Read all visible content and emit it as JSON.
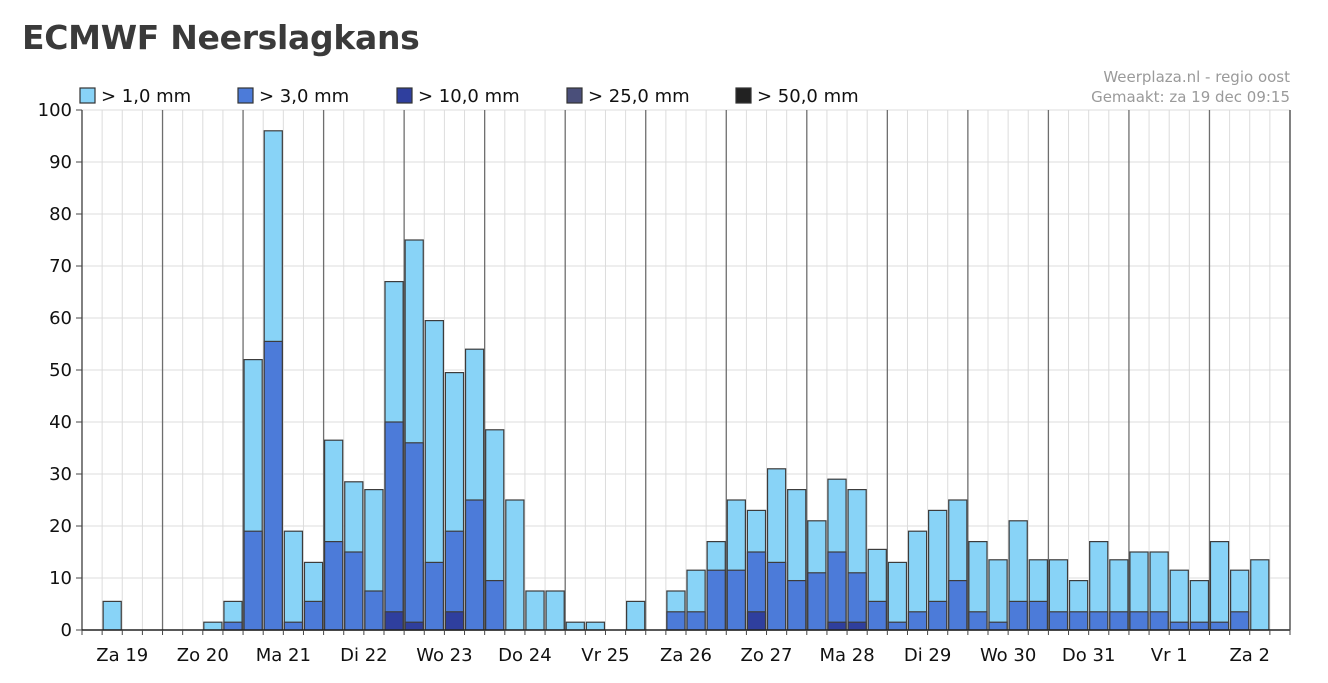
{
  "title": "ECMWF Neerslagkans",
  "credit": {
    "line1": "Weerplaza.nl - regio oost",
    "line2": "Gemaakt: za 19 dec 09:15"
  },
  "chart_data": {
    "type": "bar",
    "ylim": [
      0,
      100
    ],
    "yticks": [
      0,
      10,
      20,
      30,
      40,
      50,
      60,
      70,
      80,
      90,
      100
    ],
    "days": [
      "Za 19",
      "Zo 20",
      "Ma 21",
      "Di 22",
      "Wo 23",
      "Do 24",
      "Vr 25",
      "Za 26",
      "Zo 27",
      "Ma 28",
      "Di 29",
      "Wo 30",
      "Do 31",
      "Vr 1",
      "Za 2"
    ],
    "bars_per_day": 4,
    "grid": true,
    "legend_position": "top-left",
    "series": [
      {
        "name": "> 1,0 mm",
        "color": "#88d3f7",
        "values": [
          0,
          5.5,
          0,
          0,
          0,
          0,
          1.5,
          5.5,
          52,
          96,
          19,
          13,
          36.5,
          28.5,
          27,
          67,
          75,
          59.5,
          49.5,
          54,
          38.5,
          25,
          7.5,
          7.5,
          1.5,
          1.5,
          0,
          5.5,
          0,
          7.5,
          11.5,
          17,
          25,
          23,
          31,
          27,
          21,
          29,
          27,
          15.5,
          13,
          19,
          23,
          25,
          17,
          13.5,
          21,
          13.5,
          13.5,
          9.5,
          17,
          13.5,
          15,
          15,
          11.5,
          9.5,
          17,
          11.5,
          13.5
        ]
      },
      {
        "name": "> 3,0 mm",
        "color": "#4c7bd9",
        "values": [
          0,
          0,
          0,
          0,
          0,
          0,
          0,
          1.5,
          19,
          55.5,
          1.5,
          5.5,
          17,
          15,
          7.5,
          40,
          36,
          13,
          19,
          25,
          9.5,
          0,
          0,
          0,
          0,
          0,
          0,
          0,
          0,
          3.5,
          3.5,
          11.5,
          11.5,
          15,
          13,
          9.5,
          11,
          15,
          11,
          5.5,
          1.5,
          3.5,
          5.5,
          9.5,
          3.5,
          1.5,
          5.5,
          5.5,
          3.5,
          3.5,
          3.5,
          3.5,
          3.5,
          3.5,
          1.5,
          1.5,
          1.5,
          3.5,
          0
        ]
      },
      {
        "name": "> 10,0 mm",
        "color": "#2f3f9e",
        "values": [
          0,
          0,
          0,
          0,
          0,
          0,
          0,
          0,
          0,
          0,
          0,
          0,
          0,
          0,
          0,
          3.5,
          1.5,
          0,
          3.5,
          0,
          0,
          0,
          0,
          0,
          0,
          0,
          0,
          0,
          0,
          0,
          0,
          0,
          0,
          3.5,
          0,
          0,
          0,
          1.5,
          1.5,
          0,
          0,
          0,
          0,
          0,
          0,
          0,
          0,
          0,
          0,
          0,
          0,
          0,
          0,
          0,
          0,
          0,
          0,
          0,
          0
        ]
      },
      {
        "name": "> 25,0 mm",
        "color": "#4a4f7a",
        "values": [
          0,
          0,
          0,
          0,
          0,
          0,
          0,
          0,
          0,
          0,
          0,
          0,
          0,
          0,
          0,
          0,
          0,
          0,
          0,
          0,
          0,
          0,
          0,
          0,
          0,
          0,
          0,
          0,
          0,
          0,
          0,
          0,
          0,
          0,
          0,
          0,
          0,
          0,
          0,
          0,
          0,
          0,
          0,
          0,
          0,
          0,
          0,
          0,
          0,
          0,
          0,
          0,
          0,
          0,
          0,
          0,
          0,
          0,
          0
        ]
      },
      {
        "name": "> 50,0 mm",
        "color": "#222222",
        "values": [
          0,
          0,
          0,
          0,
          0,
          0,
          0,
          0,
          0,
          0,
          0,
          0,
          0,
          0,
          0,
          0,
          0,
          0,
          0,
          0,
          0,
          0,
          0,
          0,
          0,
          0,
          0,
          0,
          0,
          0,
          0,
          0,
          0,
          0,
          0,
          0,
          0,
          0,
          0,
          0,
          0,
          0,
          0,
          0,
          0,
          0,
          0,
          0,
          0,
          0,
          0,
          0,
          0,
          0,
          0,
          0,
          0,
          0,
          0
        ]
      }
    ]
  }
}
